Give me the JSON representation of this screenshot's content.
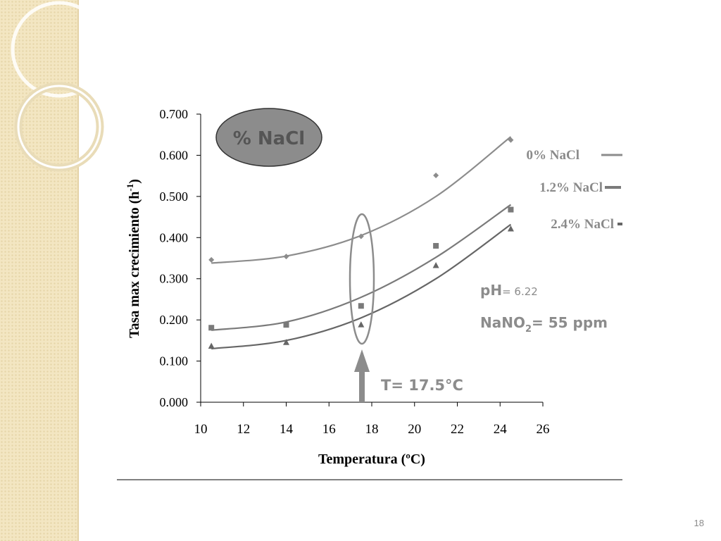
{
  "page": {
    "number": "18"
  },
  "chart_data": {
    "type": "scatter",
    "xlabel": "Temperatura (ºC)",
    "ylabel_main": "Tasa max crecimiento (h",
    "ylabel_sup": "-1",
    "ylabel_end": ")",
    "xlim": [
      10,
      26
    ],
    "ylim": [
      0.0,
      0.7
    ],
    "x_ticks": [
      "10",
      "12",
      "14",
      "16",
      "18",
      "20",
      "22",
      "24",
      "26"
    ],
    "y_ticks": [
      "0.000",
      "0.100",
      "0.200",
      "0.300",
      "0.400",
      "0.500",
      "0.600",
      "0.700"
    ],
    "grid": false,
    "legend_position": "right",
    "series": [
      {
        "name": "0% NaCl",
        "marker": "diamond",
        "color": "#8c8c8c",
        "points": [
          [
            10.5,
            0.346
          ],
          [
            14,
            0.354
          ],
          [
            17.5,
            0.403
          ],
          [
            21,
            0.551
          ],
          [
            24.5,
            0.637
          ]
        ],
        "fit": [
          [
            10.5,
            0.338
          ],
          [
            14,
            0.355
          ],
          [
            17.5,
            0.405
          ],
          [
            21,
            0.5
          ],
          [
            24.5,
            0.645
          ]
        ]
      },
      {
        "name": "1.2% NaCl",
        "marker": "square",
        "color": "#7a7a7a",
        "points": [
          [
            10.5,
            0.181
          ],
          [
            14,
            0.188
          ],
          [
            17.5,
            0.234
          ],
          [
            21,
            0.38
          ],
          [
            24.5,
            0.468
          ]
        ],
        "fit": [
          [
            10.5,
            0.175
          ],
          [
            14,
            0.195
          ],
          [
            17.5,
            0.255
          ],
          [
            21,
            0.352
          ],
          [
            24.5,
            0.48
          ]
        ]
      },
      {
        "name": "2.4% NaCl",
        "marker": "triangle",
        "color": "#666666",
        "points": [
          [
            10.5,
            0.136
          ],
          [
            14,
            0.145
          ],
          [
            17.5,
            0.188
          ],
          [
            21,
            0.332
          ],
          [
            24.5,
            0.421
          ]
        ],
        "fit": [
          [
            10.5,
            0.13
          ],
          [
            14,
            0.15
          ],
          [
            17.5,
            0.205
          ],
          [
            21,
            0.3
          ],
          [
            24.5,
            0.432
          ]
        ]
      }
    ],
    "annotations": {
      "nacl_badge": "% NaCl",
      "ph_label": "pH",
      "ph_value": "= 6.22",
      "nano_label": "NaNO",
      "nano_sub": "2",
      "nano_value": "= 55 ppm",
      "temp_label": "T= 17.5°C",
      "highlight_x": 17.5
    }
  }
}
